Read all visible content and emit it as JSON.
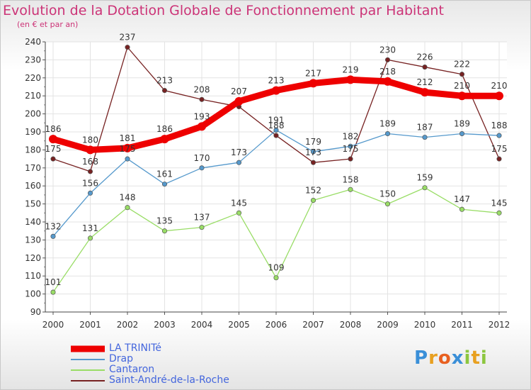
{
  "title": "Evolution de la Dotation Globale de Fonctionnement par Habitant",
  "subtitle": "(en € et par an)",
  "logo": {
    "text": "Proxiti",
    "letters": [
      {
        "ch": "P",
        "color": "#3a8fd8"
      },
      {
        "ch": "r",
        "color": "#e8a020"
      },
      {
        "ch": "o",
        "color": "#e86020"
      },
      {
        "ch": "x",
        "color": "#3a8fd8"
      },
      {
        "ch": "i",
        "color": "#8cc63f"
      },
      {
        "ch": "t",
        "color": "#e8a020"
      },
      {
        "ch": "i",
        "color": "#8cc63f"
      }
    ]
  },
  "chart_data": {
    "type": "line",
    "x": [
      "2000",
      "2001",
      "2002",
      "2003",
      "2004",
      "2005",
      "2006",
      "2007",
      "2008",
      "2009",
      "2010",
      "2011",
      "2012"
    ],
    "ylim": [
      90,
      240
    ],
    "yticks": [
      90,
      100,
      110,
      120,
      130,
      140,
      150,
      160,
      170,
      180,
      190,
      200,
      210,
      220,
      230,
      240
    ],
    "grid": true,
    "legend_position": "bottom-left",
    "series": [
      {
        "name": "LA TRINITé",
        "color": "#ee0000",
        "values": [
          186,
          180,
          181,
          186,
          193,
          207,
          213,
          217,
          219,
          218,
          212,
          210,
          210
        ],
        "labels": [
          "186",
          "180",
          "181",
          "186",
          "193",
          "207",
          "213",
          "217",
          "219",
          "218",
          "212",
          "210",
          "210"
        ]
      },
      {
        "name": "Drap",
        "color": "#5599cc",
        "values": [
          132,
          156,
          175,
          161,
          170,
          173,
          191,
          179,
          182,
          189,
          187,
          189,
          188
        ],
        "labels": [
          "132",
          "156",
          "175",
          "161",
          "170",
          "173",
          "191",
          "179",
          "182",
          "189",
          "187",
          "189",
          "188"
        ]
      },
      {
        "name": "Cantaron",
        "color": "#99dd66",
        "values": [
          101,
          131,
          148,
          135,
          137,
          145,
          109,
          152,
          158,
          150,
          159,
          147,
          145
        ],
        "labels": [
          "101",
          "131",
          "148",
          "135",
          "137",
          "145",
          "109",
          "152",
          "158",
          "150",
          "159",
          "147",
          "145"
        ]
      },
      {
        "name": "Saint-André-de-la-Roche",
        "color": "#772222",
        "values": [
          175,
          168,
          237,
          213,
          208,
          204,
          188,
          173,
          175,
          230,
          226,
          222,
          175
        ],
        "labels": [
          "175",
          "168",
          "237",
          "213",
          "208",
          "",
          "188",
          "173",
          "175",
          "230",
          "226",
          "222",
          "175"
        ]
      }
    ]
  }
}
